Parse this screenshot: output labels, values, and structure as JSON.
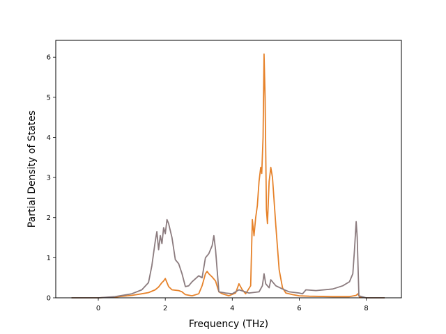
{
  "chart_data": {
    "type": "line",
    "title": "",
    "xlabel": "Frequency (THz)",
    "ylabel": "Partial Density of States",
    "xlim": [
      -1.27,
      9.05
    ],
    "ylim": [
      0,
      6.42
    ],
    "xticks": [
      0,
      2,
      4,
      6,
      8
    ],
    "yticks": [
      0,
      1,
      2,
      3,
      4,
      5,
      6
    ],
    "grid": false,
    "legend": "none",
    "series": [
      {
        "color": "#e6822a",
        "points": [
          [
            -0.8,
            0.0
          ],
          [
            0.0,
            0.0
          ],
          [
            0.5,
            0.02
          ],
          [
            1.0,
            0.06
          ],
          [
            1.3,
            0.1
          ],
          [
            1.5,
            0.13
          ],
          [
            1.7,
            0.2
          ],
          [
            1.8,
            0.27
          ],
          [
            1.9,
            0.38
          ],
          [
            1.95,
            0.42
          ],
          [
            2.0,
            0.48
          ],
          [
            2.05,
            0.38
          ],
          [
            2.1,
            0.28
          ],
          [
            2.2,
            0.2
          ],
          [
            2.4,
            0.18
          ],
          [
            2.5,
            0.15
          ],
          [
            2.6,
            0.08
          ],
          [
            2.8,
            0.05
          ],
          [
            3.0,
            0.1
          ],
          [
            3.1,
            0.3
          ],
          [
            3.2,
            0.6
          ],
          [
            3.25,
            0.66
          ],
          [
            3.3,
            0.6
          ],
          [
            3.4,
            0.52
          ],
          [
            3.5,
            0.42
          ],
          [
            3.6,
            0.15
          ],
          [
            3.7,
            0.1
          ],
          [
            3.9,
            0.05
          ],
          [
            4.1,
            0.12
          ],
          [
            4.2,
            0.35
          ],
          [
            4.3,
            0.2
          ],
          [
            4.4,
            0.1
          ],
          [
            4.55,
            0.3
          ],
          [
            4.6,
            1.95
          ],
          [
            4.65,
            1.55
          ],
          [
            4.7,
            2.0
          ],
          [
            4.75,
            2.3
          ],
          [
            4.8,
            2.9
          ],
          [
            4.85,
            3.25
          ],
          [
            4.88,
            3.1
          ],
          [
            4.92,
            4.0
          ],
          [
            4.95,
            6.08
          ],
          [
            4.98,
            5.0
          ],
          [
            5.02,
            2.2
          ],
          [
            5.05,
            1.85
          ],
          [
            5.1,
            2.9
          ],
          [
            5.15,
            3.25
          ],
          [
            5.2,
            3.0
          ],
          [
            5.3,
            1.8
          ],
          [
            5.4,
            0.7
          ],
          [
            5.5,
            0.25
          ],
          [
            5.6,
            0.12
          ],
          [
            5.8,
            0.08
          ],
          [
            6.0,
            0.05
          ],
          [
            6.3,
            0.04
          ],
          [
            7.0,
            0.03
          ],
          [
            7.5,
            0.03
          ],
          [
            7.7,
            0.06
          ],
          [
            7.75,
            0.1
          ],
          [
            7.8,
            0.02
          ],
          [
            8.0,
            0.0
          ],
          [
            8.55,
            0.0
          ]
        ]
      },
      {
        "color": "#8b7b7e",
        "points": [
          [
            -0.8,
            0.0
          ],
          [
            0.0,
            0.0
          ],
          [
            0.5,
            0.03
          ],
          [
            1.0,
            0.1
          ],
          [
            1.3,
            0.2
          ],
          [
            1.5,
            0.38
          ],
          [
            1.6,
            0.8
          ],
          [
            1.7,
            1.4
          ],
          [
            1.75,
            1.65
          ],
          [
            1.8,
            1.2
          ],
          [
            1.85,
            1.55
          ],
          [
            1.9,
            1.35
          ],
          [
            1.95,
            1.75
          ],
          [
            2.0,
            1.6
          ],
          [
            2.05,
            1.95
          ],
          [
            2.1,
            1.85
          ],
          [
            2.2,
            1.5
          ],
          [
            2.3,
            0.95
          ],
          [
            2.4,
            0.85
          ],
          [
            2.5,
            0.6
          ],
          [
            2.6,
            0.28
          ],
          [
            2.7,
            0.3
          ],
          [
            2.8,
            0.4
          ],
          [
            3.0,
            0.55
          ],
          [
            3.1,
            0.5
          ],
          [
            3.2,
            1.0
          ],
          [
            3.3,
            1.1
          ],
          [
            3.4,
            1.3
          ],
          [
            3.45,
            1.55
          ],
          [
            3.5,
            1.2
          ],
          [
            3.6,
            0.15
          ],
          [
            3.8,
            0.12
          ],
          [
            4.0,
            0.1
          ],
          [
            4.2,
            0.2
          ],
          [
            4.5,
            0.12
          ],
          [
            4.8,
            0.15
          ],
          [
            4.9,
            0.3
          ],
          [
            4.95,
            0.6
          ],
          [
            5.0,
            0.35
          ],
          [
            5.1,
            0.25
          ],
          [
            5.15,
            0.45
          ],
          [
            5.3,
            0.3
          ],
          [
            5.5,
            0.22
          ],
          [
            5.7,
            0.15
          ],
          [
            6.0,
            0.12
          ],
          [
            6.1,
            0.1
          ],
          [
            6.2,
            0.2
          ],
          [
            6.5,
            0.18
          ],
          [
            7.0,
            0.22
          ],
          [
            7.3,
            0.3
          ],
          [
            7.5,
            0.4
          ],
          [
            7.6,
            0.6
          ],
          [
            7.65,
            1.2
          ],
          [
            7.7,
            1.9
          ],
          [
            7.73,
            1.5
          ],
          [
            7.78,
            0.05
          ],
          [
            8.0,
            0.0
          ],
          [
            8.55,
            0.0
          ]
        ]
      }
    ]
  }
}
